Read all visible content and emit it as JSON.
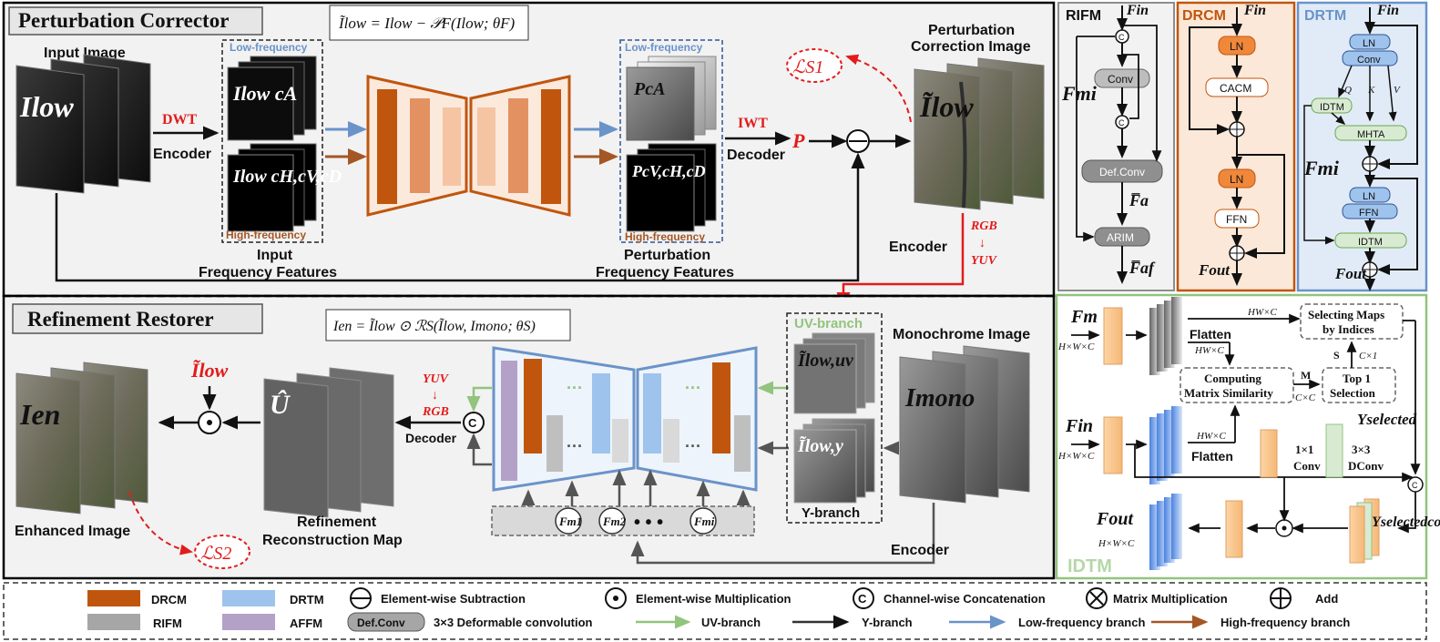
{
  "perturbation": {
    "title": "Perturbation Corrector",
    "formula": "Ĩlow = Ilow − 𝒫F(Ilow; θF)",
    "input_image_label": "Input Image",
    "input_image_symbol": "Ilow",
    "dwt": "DWT",
    "encoder": "Encoder",
    "low_freq": "Low-frequency",
    "high_freq": "High-frequency",
    "input_ca": "Ilow cA",
    "input_chvd": "Ilow cH,cV,cD",
    "input_freq_label_1": "Input",
    "input_freq_label_2": "Frequency Features",
    "p_ca": "PcA",
    "p_chvd": "PcV,cH,cD",
    "pert_freq_label_1": "Perturbation",
    "pert_freq_label_2": "Frequency Features",
    "iwt": "IWT",
    "decoder": "Decoder",
    "p_symbol": "P",
    "correction_label_1": "Perturbation",
    "correction_label_2": "Correction Image",
    "correction_symbol": "Ĩlow",
    "loss1": "ℒS1",
    "encoder2": "Encoder",
    "rgb": "RGB",
    "yuv": "YUV"
  },
  "refinement": {
    "title": "Refinement Restorer",
    "formula": "Ien = Ĩlow ⊙ ℛS(Ĩlow, Imono; θS)",
    "enhanced_label": "Enhanced Image",
    "enhanced_symbol": "Ien",
    "tilde_low": "Ĩlow",
    "u_hat": "Û",
    "recon_label_1": "Refinement",
    "recon_label_2": "Reconstruction Map",
    "yuv": "YUV",
    "rgb": "RGB",
    "decoder": "Decoder",
    "uv_branch": "UV-branch",
    "y_branch": "Y-branch",
    "i_uv": "Ĩlow,uv",
    "i_y": "Ĩlow,y",
    "mono_label": "Monochrome Image",
    "mono_symbol": "Imono",
    "encoder": "Encoder",
    "loss2": "ℒS2",
    "fm1": "Fm1",
    "fm2": "Fm2",
    "fmi": "Fmi",
    "dots": "• • •"
  },
  "rifm": {
    "title": "RIFM",
    "f_in": "Fin",
    "f_m": "Fmi",
    "conv": "Conv",
    "defconv": "Def.Conv",
    "f_a": "F̅a",
    "arim": "ARIM",
    "f_af": "F̅af"
  },
  "drcm": {
    "title": "DRCM",
    "f_in": "Fin",
    "ln1": "LN",
    "cacm": "CACM",
    "ln2": "LN",
    "ffn": "FFN",
    "f_out": "Fout"
  },
  "drtm": {
    "title": "DRTM",
    "f_in": "Fin",
    "ln1": "LN",
    "conv": "Conv",
    "q": "Q",
    "k": "K",
    "v": "V",
    "idtm1": "IDTM",
    "mhta": "MHTA",
    "f_m": "Fmi",
    "ln2": "LN",
    "ffn": "FFN",
    "idtm2": "IDTM",
    "f_out": "Fout"
  },
  "idtm": {
    "title": "IDTM",
    "f_m": "Fm",
    "f_in": "Fin",
    "dims": "H×W×C",
    "flatten": "Flatten",
    "hwc": "HW×C",
    "select_1": "Selecting Maps",
    "select_2": "by Indices",
    "compute_1": "Computing",
    "compute_2": "Matrix Similarity",
    "m": "M",
    "cc": "C×C",
    "top1_1": "Top 1",
    "top1_2": "Selection",
    "s": "S",
    "c1": "C×1",
    "y_selected": "Yselected",
    "conv1": "1×1",
    "conv1b": "Conv",
    "dconv1": "3×3",
    "dconv1b": "DConv",
    "y_concat": "Yselectedconcat",
    "f_out": "Fout"
  },
  "legend": {
    "drcm": "DRCM",
    "rifm": "RIFM",
    "drtm": "DRTM",
    "affm": "AFFM",
    "defconv": "Def.Conv",
    "defconv_desc": "3×3 Deformable convolution",
    "sub": "Element-wise Subtraction",
    "mul": "Element-wise Multiplication",
    "uv": "UV-branch",
    "y": "Y-branch",
    "concat": "Channel-wise Concatenation",
    "matmul": "Matrix Multiplication",
    "add": "Add",
    "low": "Low-frequency branch",
    "high": "High-frequency branch",
    "colors": {
      "drcm": "#c0560e",
      "rifm": "#a6a6a6",
      "drtm": "#9ec3ec",
      "affm": "#b4a1c8",
      "green": "#92c47d",
      "black": "#333333",
      "blue": "#6a93c9",
      "brown": "#a45725"
    }
  }
}
